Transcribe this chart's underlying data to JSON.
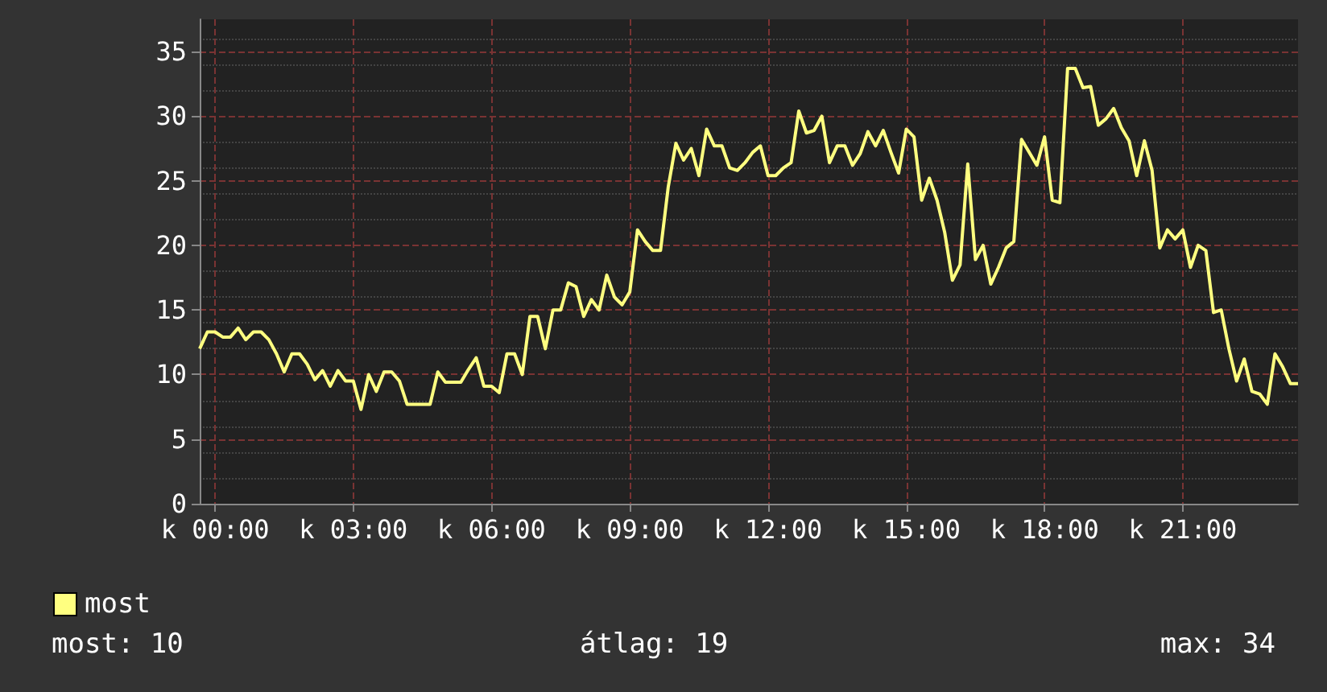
{
  "chart_data": {
    "type": "line",
    "marker": "none",
    "line_style": "solid",
    "grid": true,
    "legend": "bottom left",
    "ylim": [
      0,
      37.5
    ],
    "categories": [
      null,
      null,
      "k 00:00",
      null,
      null,
      null,
      null,
      null,
      null,
      null,
      null,
      null,
      null,
      null,
      null,
      null,
      null,
      null,
      null,
      null,
      "k 03:00",
      null,
      null,
      null,
      null,
      null,
      null,
      null,
      null,
      null,
      null,
      null,
      null,
      null,
      null,
      null,
      null,
      null,
      "k 06:00",
      null,
      null,
      null,
      null,
      null,
      null,
      null,
      null,
      null,
      null,
      null,
      null,
      null,
      null,
      null,
      null,
      null,
      "k 09:00",
      null,
      null,
      null,
      null,
      null,
      null,
      null,
      null,
      null,
      null,
      null,
      null,
      null,
      null,
      null,
      null,
      null,
      "k 12:00",
      null,
      null,
      null,
      null,
      null,
      null,
      null,
      null,
      null,
      null,
      null,
      null,
      null,
      null,
      null,
      null,
      null,
      "k 15:00",
      null,
      null,
      null,
      null,
      null,
      null,
      null,
      null,
      null,
      null,
      null,
      null,
      null,
      null,
      null,
      null,
      null,
      "k 18:00",
      null,
      null,
      null,
      null,
      null,
      null,
      null,
      null,
      null,
      null,
      null,
      null,
      null,
      null,
      null,
      null,
      null,
      "k 21:00",
      null,
      null,
      null,
      null,
      null,
      null,
      null,
      null,
      null,
      null,
      null,
      null,
      null,
      null,
      null
    ],
    "yticks": [
      0,
      5,
      10,
      15,
      20,
      25,
      30,
      35
    ],
    "annotations": [
      "most: 10",
      "átlag: 19",
      "max: 34"
    ],
    "series": [
      {
        "name": "most",
        "color": "#ffff80",
        "values": [
          12.0,
          13.3,
          13.3,
          12.9,
          12.9,
          13.6,
          12.7,
          13.3,
          13.3,
          12.7,
          11.6,
          10.2,
          11.6,
          11.6,
          10.8,
          9.6,
          10.3,
          9.1,
          10.3,
          9.5,
          9.5,
          7.3,
          10.0,
          8.7,
          10.2,
          10.2,
          9.5,
          7.7,
          7.7,
          7.7,
          7.7,
          10.2,
          9.4,
          9.4,
          9.4,
          10.4,
          11.3,
          9.1,
          9.1,
          8.6,
          11.6,
          11.6,
          10.0,
          14.5,
          14.5,
          12.0,
          15.0,
          15.0,
          17.1,
          16.8,
          14.5,
          15.8,
          15.0,
          17.7,
          16.0,
          15.4,
          16.4,
          21.2,
          20.3,
          19.6,
          19.6,
          24.5,
          27.9,
          26.6,
          27.5,
          25.4,
          29.0,
          27.7,
          27.7,
          26.0,
          25.8,
          26.4,
          27.2,
          27.7,
          25.4,
          25.4,
          26.0,
          26.4,
          30.4,
          28.7,
          28.9,
          30.0,
          26.4,
          27.7,
          27.7,
          26.2,
          27.1,
          28.8,
          27.7,
          28.9,
          27.2,
          25.6,
          29.0,
          28.4,
          23.5,
          25.2,
          23.5,
          21.0,
          17.3,
          18.5,
          26.3,
          18.9,
          20.0,
          17.0,
          18.3,
          19.8,
          20.3,
          28.2,
          27.2,
          26.2,
          28.4,
          23.5,
          23.3,
          33.7,
          33.7,
          32.2,
          32.3,
          29.3,
          29.8,
          30.6,
          29.1,
          28.1,
          25.4,
          28.1,
          25.8,
          19.8,
          21.2,
          20.5,
          21.2,
          18.3,
          20.0,
          19.6,
          14.8,
          15.0,
          12.0,
          9.5,
          11.2,
          8.7,
          8.5,
          7.7,
          11.6,
          10.6,
          9.3,
          9.3
        ]
      }
    ]
  }
}
